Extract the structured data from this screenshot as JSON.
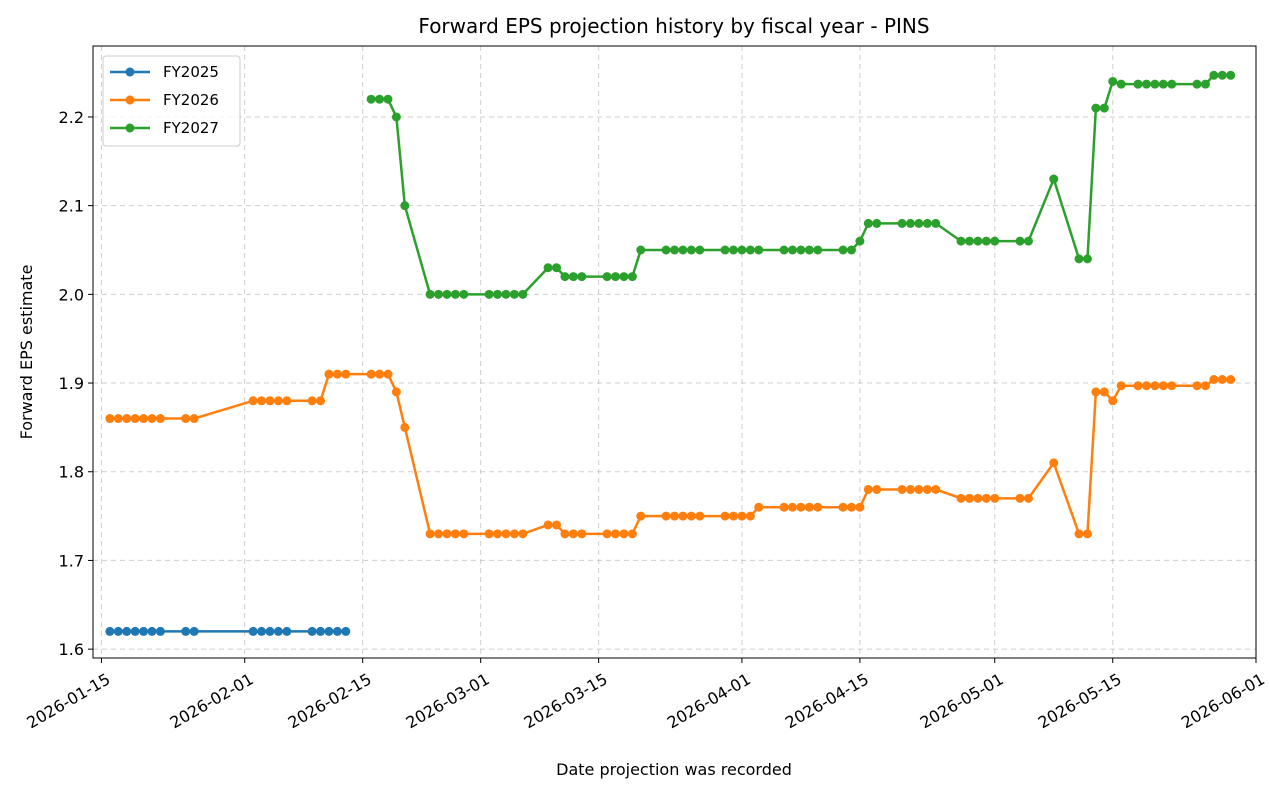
{
  "chart_data": {
    "type": "line",
    "title": "Forward EPS projection history by fiscal year - PINS",
    "xlabel": "Date projection was recorded",
    "ylabel": "Forward EPS estimate",
    "x_ticks": [
      "2026-01-15",
      "2026-02-01",
      "2026-02-15",
      "2026-03-01",
      "2026-03-15",
      "2026-04-01",
      "2026-04-15",
      "2026-05-01",
      "2026-05-15",
      "2026-06-01"
    ],
    "y_ticks": [
      1.6,
      1.7,
      1.8,
      1.9,
      2.0,
      2.1,
      2.2
    ],
    "xlim": [
      "2026-01-14",
      "2026-06-01"
    ],
    "ylim": [
      1.59,
      2.28
    ],
    "grid": true,
    "legend_position": "top-left",
    "series": [
      {
        "name": "FY2025",
        "color": "#1f77b4",
        "points": [
          [
            "2026-01-16",
            1.62
          ],
          [
            "2026-01-17",
            1.62
          ],
          [
            "2026-01-18",
            1.62
          ],
          [
            "2026-01-19",
            1.62
          ],
          [
            "2026-01-20",
            1.62
          ],
          [
            "2026-01-21",
            1.62
          ],
          [
            "2026-01-22",
            1.62
          ],
          [
            "2026-01-25",
            1.62
          ],
          [
            "2026-01-26",
            1.62
          ],
          [
            "2026-02-02",
            1.62
          ],
          [
            "2026-02-03",
            1.62
          ],
          [
            "2026-02-04",
            1.62
          ],
          [
            "2026-02-05",
            1.62
          ],
          [
            "2026-02-06",
            1.62
          ],
          [
            "2026-02-09",
            1.62
          ],
          [
            "2026-02-10",
            1.62
          ],
          [
            "2026-02-11",
            1.62
          ],
          [
            "2026-02-12",
            1.62
          ],
          [
            "2026-02-13",
            1.62
          ]
        ]
      },
      {
        "name": "FY2026",
        "color": "#ff7f0e",
        "points": [
          [
            "2026-01-16",
            1.86
          ],
          [
            "2026-01-17",
            1.86
          ],
          [
            "2026-01-18",
            1.86
          ],
          [
            "2026-01-19",
            1.86
          ],
          [
            "2026-01-20",
            1.86
          ],
          [
            "2026-01-21",
            1.86
          ],
          [
            "2026-01-22",
            1.86
          ],
          [
            "2026-01-25",
            1.86
          ],
          [
            "2026-01-26",
            1.86
          ],
          [
            "2026-02-02",
            1.88
          ],
          [
            "2026-02-03",
            1.88
          ],
          [
            "2026-02-04",
            1.88
          ],
          [
            "2026-02-05",
            1.88
          ],
          [
            "2026-02-06",
            1.88
          ],
          [
            "2026-02-09",
            1.88
          ],
          [
            "2026-02-10",
            1.88
          ],
          [
            "2026-02-11",
            1.91
          ],
          [
            "2026-02-12",
            1.91
          ],
          [
            "2026-02-13",
            1.91
          ],
          [
            "2026-02-16",
            1.91
          ],
          [
            "2026-02-17",
            1.91
          ],
          [
            "2026-02-18",
            1.91
          ],
          [
            "2026-02-19",
            1.89
          ],
          [
            "2026-02-20",
            1.85
          ],
          [
            "2026-02-23",
            1.73
          ],
          [
            "2026-02-24",
            1.73
          ],
          [
            "2026-02-25",
            1.73
          ],
          [
            "2026-02-26",
            1.73
          ],
          [
            "2026-02-27",
            1.73
          ],
          [
            "2026-03-02",
            1.73
          ],
          [
            "2026-03-03",
            1.73
          ],
          [
            "2026-03-04",
            1.73
          ],
          [
            "2026-03-05",
            1.73
          ],
          [
            "2026-03-06",
            1.73
          ],
          [
            "2026-03-09",
            1.74
          ],
          [
            "2026-03-10",
            1.74
          ],
          [
            "2026-03-11",
            1.73
          ],
          [
            "2026-03-12",
            1.73
          ],
          [
            "2026-03-13",
            1.73
          ],
          [
            "2026-03-16",
            1.73
          ],
          [
            "2026-03-17",
            1.73
          ],
          [
            "2026-03-18",
            1.73
          ],
          [
            "2026-03-19",
            1.73
          ],
          [
            "2026-03-20",
            1.75
          ],
          [
            "2026-03-23",
            1.75
          ],
          [
            "2026-03-24",
            1.75
          ],
          [
            "2026-03-25",
            1.75
          ],
          [
            "2026-03-26",
            1.75
          ],
          [
            "2026-03-27",
            1.75
          ],
          [
            "2026-03-30",
            1.75
          ],
          [
            "2026-03-31",
            1.75
          ],
          [
            "2026-04-01",
            1.75
          ],
          [
            "2026-04-02",
            1.75
          ],
          [
            "2026-04-03",
            1.76
          ],
          [
            "2026-04-06",
            1.76
          ],
          [
            "2026-04-07",
            1.76
          ],
          [
            "2026-04-08",
            1.76
          ],
          [
            "2026-04-09",
            1.76
          ],
          [
            "2026-04-10",
            1.76
          ],
          [
            "2026-04-13",
            1.76
          ],
          [
            "2026-04-14",
            1.76
          ],
          [
            "2026-04-15",
            1.76
          ],
          [
            "2026-04-16",
            1.78
          ],
          [
            "2026-04-17",
            1.78
          ],
          [
            "2026-04-20",
            1.78
          ],
          [
            "2026-04-21",
            1.78
          ],
          [
            "2026-04-22",
            1.78
          ],
          [
            "2026-04-23",
            1.78
          ],
          [
            "2026-04-24",
            1.78
          ],
          [
            "2026-04-27",
            1.77
          ],
          [
            "2026-04-28",
            1.77
          ],
          [
            "2026-04-29",
            1.77
          ],
          [
            "2026-04-30",
            1.77
          ],
          [
            "2026-05-01",
            1.77
          ],
          [
            "2026-05-04",
            1.77
          ],
          [
            "2026-05-05",
            1.77
          ],
          [
            "2026-05-08",
            1.81
          ],
          [
            "2026-05-11",
            1.73
          ],
          [
            "2026-05-12",
            1.73
          ],
          [
            "2026-05-13",
            1.89
          ],
          [
            "2026-05-14",
            1.89
          ],
          [
            "2026-05-15",
            1.88
          ],
          [
            "2026-05-16",
            1.897
          ],
          [
            "2026-05-18",
            1.897
          ],
          [
            "2026-05-19",
            1.897
          ],
          [
            "2026-05-20",
            1.897
          ],
          [
            "2026-05-21",
            1.897
          ],
          [
            "2026-05-22",
            1.897
          ],
          [
            "2026-05-25",
            1.897
          ],
          [
            "2026-05-26",
            1.897
          ],
          [
            "2026-05-27",
            1.904
          ],
          [
            "2026-05-28",
            1.904
          ],
          [
            "2026-05-29",
            1.904
          ]
        ]
      },
      {
        "name": "FY2027",
        "color": "#2ca02c",
        "points": [
          [
            "2026-02-16",
            2.22
          ],
          [
            "2026-02-17",
            2.22
          ],
          [
            "2026-02-18",
            2.22
          ],
          [
            "2026-02-19",
            2.2
          ],
          [
            "2026-02-20",
            2.1
          ],
          [
            "2026-02-23",
            2.0
          ],
          [
            "2026-02-24",
            2.0
          ],
          [
            "2026-02-25",
            2.0
          ],
          [
            "2026-02-26",
            2.0
          ],
          [
            "2026-02-27",
            2.0
          ],
          [
            "2026-03-02",
            2.0
          ],
          [
            "2026-03-03",
            2.0
          ],
          [
            "2026-03-04",
            2.0
          ],
          [
            "2026-03-05",
            2.0
          ],
          [
            "2026-03-06",
            2.0
          ],
          [
            "2026-03-09",
            2.03
          ],
          [
            "2026-03-10",
            2.03
          ],
          [
            "2026-03-11",
            2.02
          ],
          [
            "2026-03-12",
            2.02
          ],
          [
            "2026-03-13",
            2.02
          ],
          [
            "2026-03-16",
            2.02
          ],
          [
            "2026-03-17",
            2.02
          ],
          [
            "2026-03-18",
            2.02
          ],
          [
            "2026-03-19",
            2.02
          ],
          [
            "2026-03-20",
            2.05
          ],
          [
            "2026-03-23",
            2.05
          ],
          [
            "2026-03-24",
            2.05
          ],
          [
            "2026-03-25",
            2.05
          ],
          [
            "2026-03-26",
            2.05
          ],
          [
            "2026-03-27",
            2.05
          ],
          [
            "2026-03-30",
            2.05
          ],
          [
            "2026-03-31",
            2.05
          ],
          [
            "2026-04-01",
            2.05
          ],
          [
            "2026-04-02",
            2.05
          ],
          [
            "2026-04-03",
            2.05
          ],
          [
            "2026-04-06",
            2.05
          ],
          [
            "2026-04-07",
            2.05
          ],
          [
            "2026-04-08",
            2.05
          ],
          [
            "2026-04-09",
            2.05
          ],
          [
            "2026-04-10",
            2.05
          ],
          [
            "2026-04-13",
            2.05
          ],
          [
            "2026-04-14",
            2.05
          ],
          [
            "2026-04-15",
            2.06
          ],
          [
            "2026-04-16",
            2.08
          ],
          [
            "2026-04-17",
            2.08
          ],
          [
            "2026-04-20",
            2.08
          ],
          [
            "2026-04-21",
            2.08
          ],
          [
            "2026-04-22",
            2.08
          ],
          [
            "2026-04-23",
            2.08
          ],
          [
            "2026-04-24",
            2.08
          ],
          [
            "2026-04-27",
            2.06
          ],
          [
            "2026-04-28",
            2.06
          ],
          [
            "2026-04-29",
            2.06
          ],
          [
            "2026-04-30",
            2.06
          ],
          [
            "2026-05-01",
            2.06
          ],
          [
            "2026-05-04",
            2.06
          ],
          [
            "2026-05-05",
            2.06
          ],
          [
            "2026-05-08",
            2.13
          ],
          [
            "2026-05-11",
            2.04
          ],
          [
            "2026-05-12",
            2.04
          ],
          [
            "2026-05-13",
            2.21
          ],
          [
            "2026-05-14",
            2.21
          ],
          [
            "2026-05-15",
            2.24
          ],
          [
            "2026-05-16",
            2.237
          ],
          [
            "2026-05-18",
            2.237
          ],
          [
            "2026-05-19",
            2.237
          ],
          [
            "2026-05-20",
            2.237
          ],
          [
            "2026-05-21",
            2.237
          ],
          [
            "2026-05-22",
            2.237
          ],
          [
            "2026-05-25",
            2.237
          ],
          [
            "2026-05-26",
            2.237
          ],
          [
            "2026-05-27",
            2.247
          ],
          [
            "2026-05-28",
            2.247
          ],
          [
            "2026-05-29",
            2.247
          ]
        ]
      }
    ]
  }
}
